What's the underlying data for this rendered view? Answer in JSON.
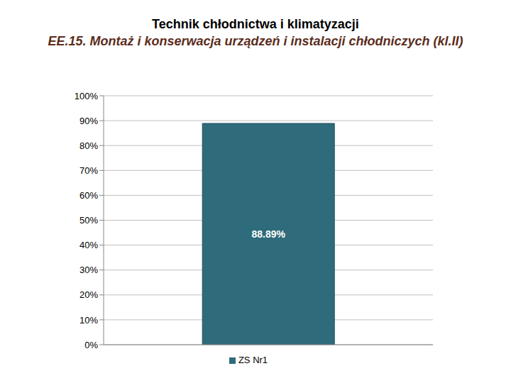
{
  "chart_data": {
    "type": "bar",
    "title": "Technik chłodnictwa i klimatyzacji",
    "subtitle": "EE.15. Montaż i konserwacja urządzeń i instalacji chłodniczych (kl.II)",
    "categories": [
      null
    ],
    "series": [
      {
        "name": "ZS Nr1",
        "color": "#2e6b7b",
        "values": [
          88.89
        ],
        "value_labels": [
          "88.89%"
        ]
      }
    ],
    "ylim": [
      0,
      100
    ],
    "yticks": [
      {
        "value": 0,
        "label": "0%"
      },
      {
        "value": 10,
        "label": "10%"
      },
      {
        "value": 20,
        "label": "20%"
      },
      {
        "value": 30,
        "label": "30%"
      },
      {
        "value": 40,
        "label": "40%"
      },
      {
        "value": 50,
        "label": "50%"
      },
      {
        "value": 60,
        "label": "60%"
      },
      {
        "value": 70,
        "label": "70%"
      },
      {
        "value": 80,
        "label": "80%"
      },
      {
        "value": 90,
        "label": "90%"
      },
      {
        "value": 100,
        "label": "100%"
      }
    ],
    "grid": true,
    "legend": "bottom",
    "data_labels": true
  }
}
